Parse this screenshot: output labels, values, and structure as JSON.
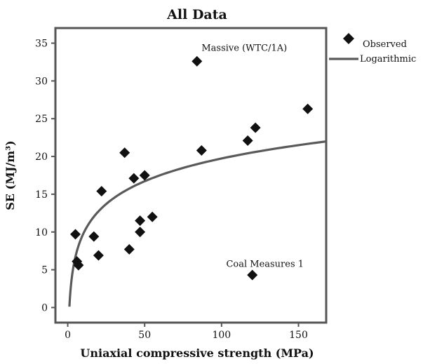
{
  "chart_data": {
    "type": "scatter",
    "title": "All Data",
    "xlabel": "Uniaxial compressive strength (MPa)",
    "ylabel": "SE (MJ/m³)",
    "xlim": [
      -8,
      168
    ],
    "ylim": [
      -2,
      37
    ],
    "xticks": [
      0,
      50,
      100,
      150
    ],
    "yticks": [
      0,
      5,
      10,
      15,
      20,
      25,
      30,
      35
    ],
    "grid": false,
    "legend_position": "top-right",
    "series": [
      {
        "name": "Observed",
        "kind": "scatter",
        "color": "#111111",
        "marker": "diamond",
        "points": [
          [
            5,
            9.7
          ],
          [
            6,
            6.1
          ],
          [
            7,
            5.6
          ],
          [
            17,
            9.4
          ],
          [
            20,
            6.9
          ],
          [
            22,
            15.4
          ],
          [
            37,
            20.5
          ],
          [
            40,
            7.7
          ],
          [
            43,
            17.1
          ],
          [
            47,
            11.5
          ],
          [
            47,
            10.0
          ],
          [
            50,
            17.5
          ],
          [
            55,
            12.0
          ],
          [
            84,
            32.6
          ],
          [
            87,
            20.8
          ],
          [
            117,
            22.1
          ],
          [
            120,
            4.3
          ],
          [
            122,
            23.8
          ],
          [
            156,
            26.3
          ]
        ]
      },
      {
        "name": "Logarithmic",
        "kind": "line",
        "color": "#5a5a5a",
        "fit": "logarithmic",
        "coefficients": {
          "a": -0.3,
          "b": 4.35
        },
        "x_range": [
          1.1,
          168
        ]
      }
    ],
    "annotations": [
      {
        "text": "Massive (WTC/1A)",
        "x": 87,
        "y": 34
      },
      {
        "text": "Coal Measures 1",
        "x": 103,
        "y": 5.4
      }
    ]
  }
}
